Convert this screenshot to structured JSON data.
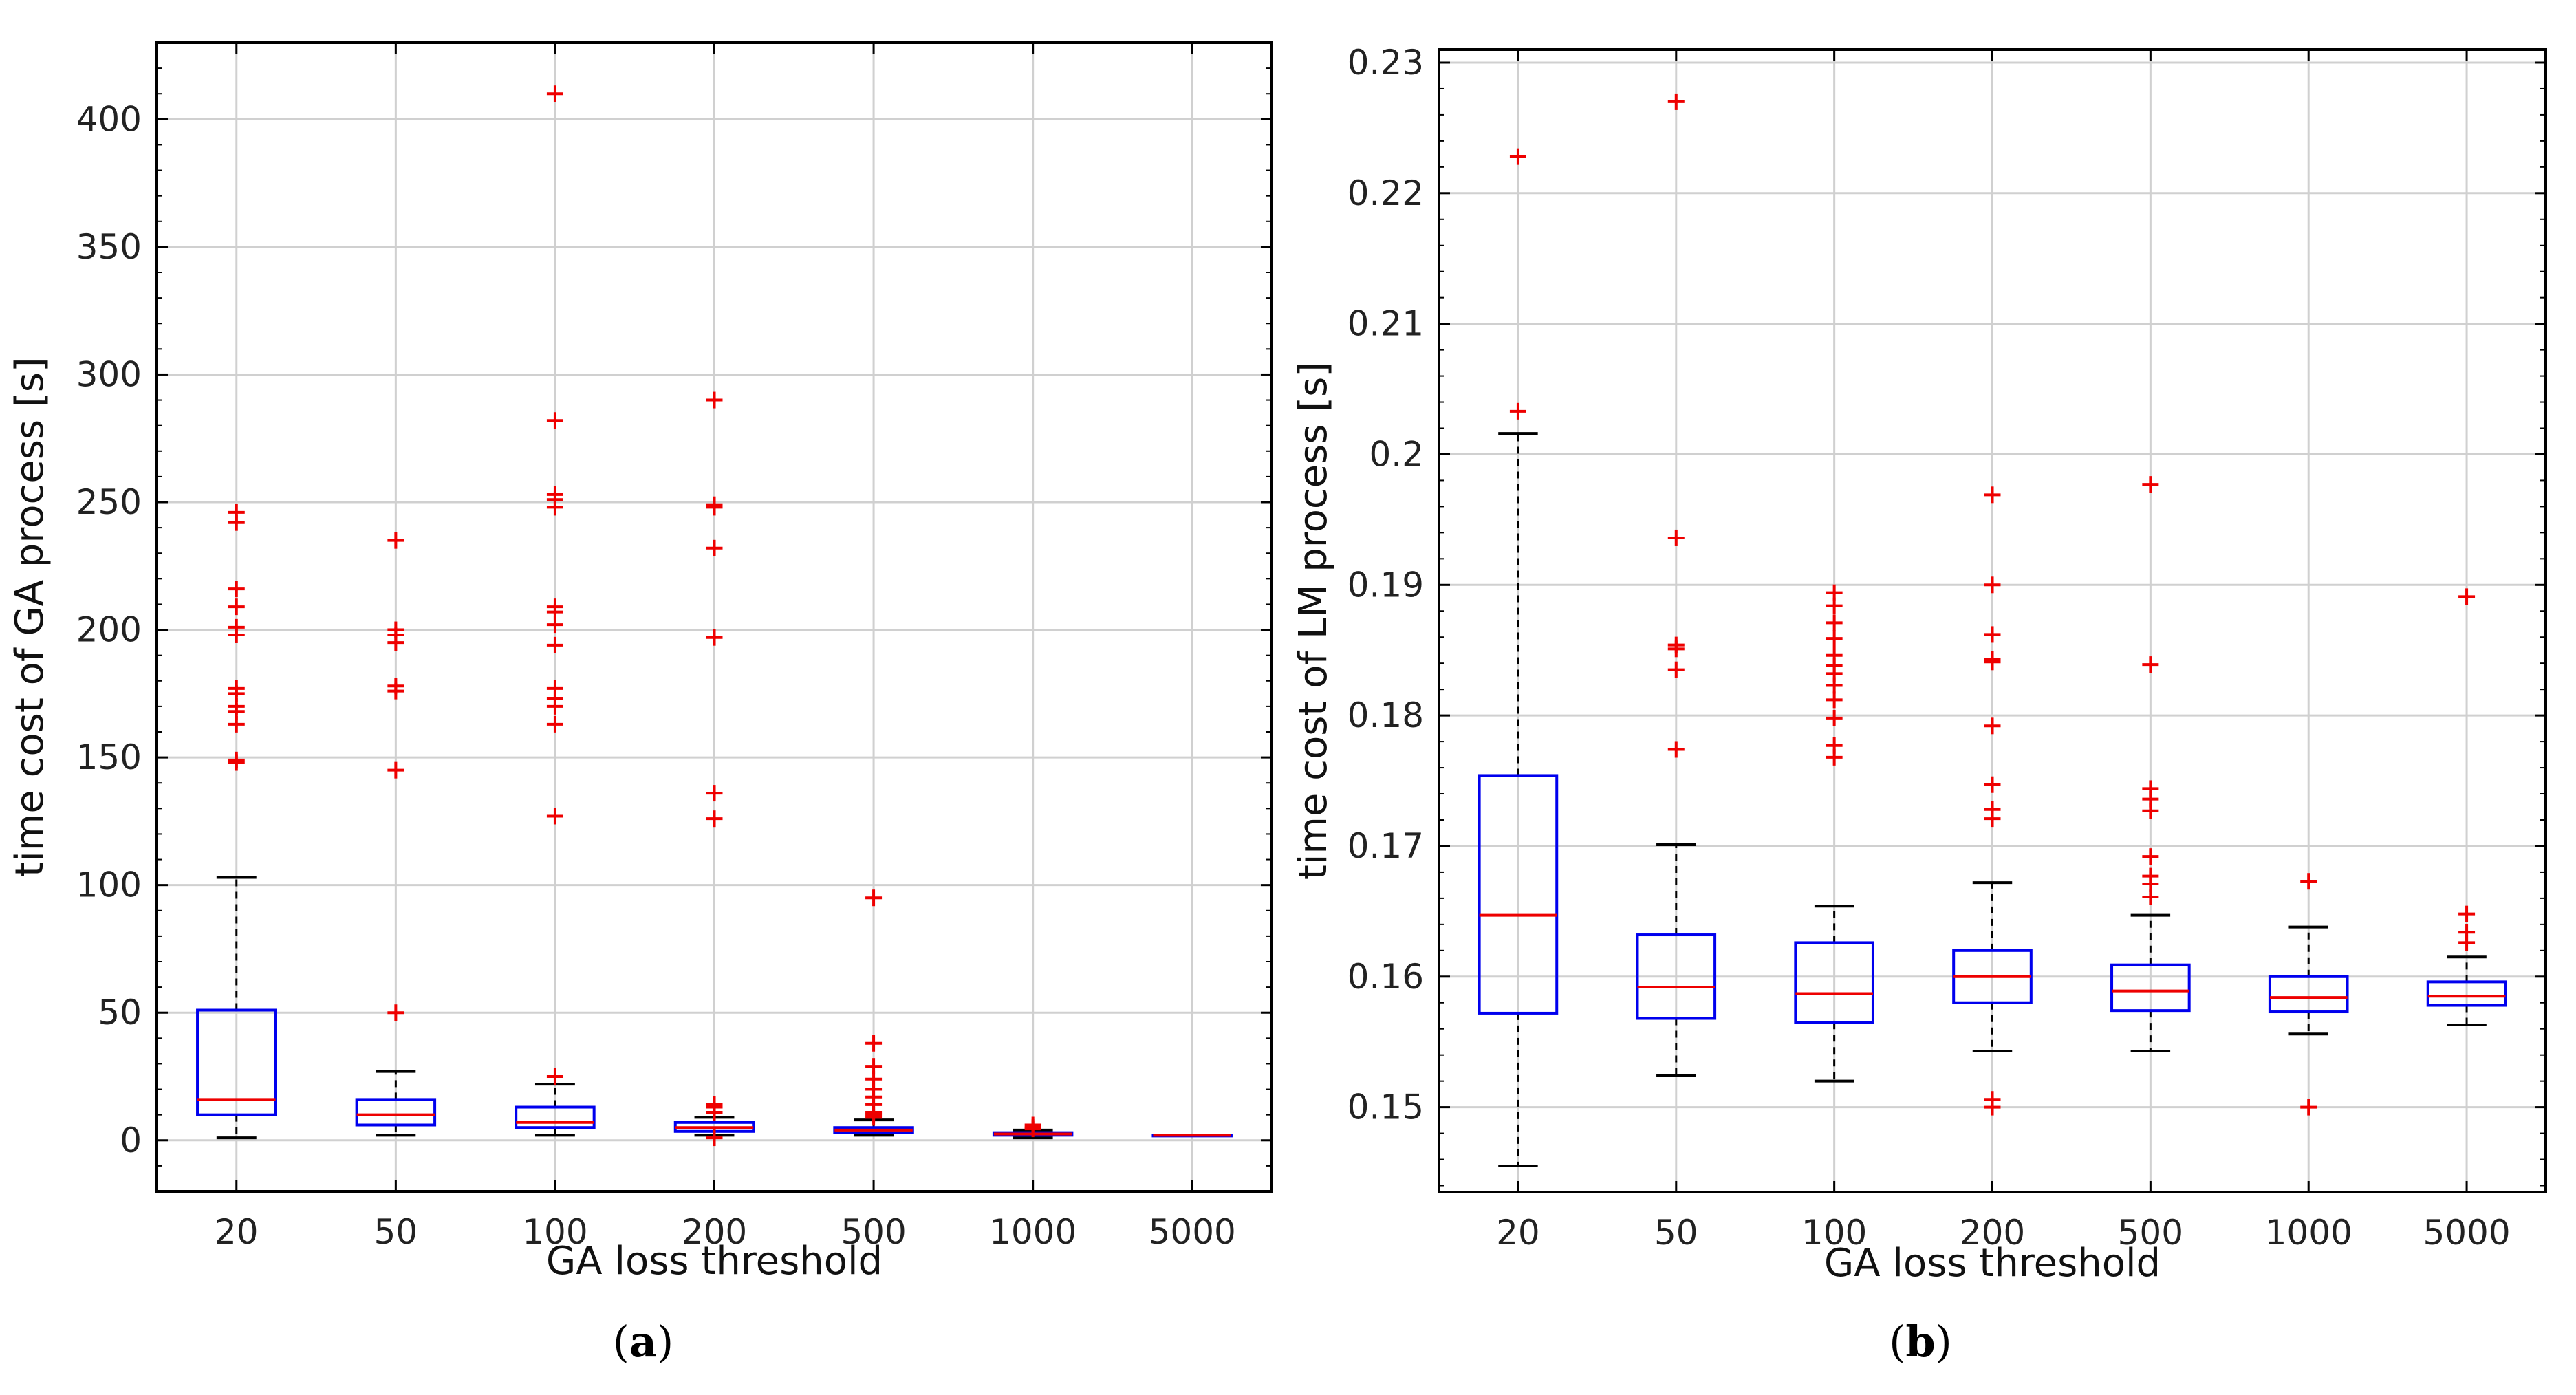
{
  "chart_data": [
    {
      "type": "box",
      "panel_label": "a",
      "xlabel": "GA loss threshold",
      "ylabel": "time cost of GA process [s]",
      "categories": [
        "20",
        "50",
        "100",
        "200",
        "500",
        "1000",
        "5000"
      ],
      "ylim": [
        -20,
        430
      ],
      "yticks": [
        0,
        50,
        100,
        150,
        200,
        250,
        300,
        350,
        400
      ],
      "ytick_labels": [
        "0",
        "50",
        "100",
        "150",
        "200",
        "250",
        "300",
        "350",
        "400"
      ],
      "grid": true,
      "box_color": "#0000ee",
      "median_color": "#ee0000",
      "whisker_color": "#000000",
      "outlier_color": "#ee0000",
      "boxes": [
        {
          "whisker_low": 1,
          "q1": 10,
          "median": 16,
          "q3": 51,
          "whisker_high": 103,
          "outliers": [
            148,
            149,
            163,
            168,
            170,
            175,
            177,
            198,
            201,
            209,
            216,
            242,
            246
          ]
        },
        {
          "whisker_low": 2,
          "q1": 6,
          "median": 10,
          "q3": 16,
          "whisker_high": 27,
          "outliers": [
            50,
            145,
            176,
            178,
            195,
            198,
            200,
            235
          ]
        },
        {
          "whisker_low": 2,
          "q1": 5,
          "median": 7,
          "q3": 13,
          "whisker_high": 22,
          "outliers": [
            25,
            127,
            163,
            170,
            173,
            177,
            194,
            202,
            207,
            209,
            248,
            251,
            253,
            282,
            410
          ]
        },
        {
          "whisker_low": 2,
          "q1": 3.5,
          "median": 5,
          "q3": 7,
          "whisker_high": 9,
          "outliers": [
            1,
            11,
            13,
            14,
            126,
            136,
            197,
            232,
            248,
            249,
            290
          ]
        },
        {
          "whisker_low": 2,
          "q1": 3,
          "median": 4,
          "q3": 5,
          "whisker_high": 8,
          "outliers": [
            9,
            10,
            11,
            14,
            17,
            20,
            24,
            29,
            38,
            95
          ]
        },
        {
          "whisker_low": 1,
          "q1": 2,
          "median": 2.5,
          "q3": 3,
          "whisker_high": 4,
          "outliers": [
            4.5,
            5,
            6
          ]
        },
        {
          "whisker_low": 2,
          "q1": 2,
          "median": 2,
          "q3": 2,
          "whisker_high": 2,
          "outliers": []
        }
      ]
    },
    {
      "type": "box",
      "panel_label": "b",
      "xlabel": "GA loss threshold",
      "ylabel": "time cost of LM process [s]",
      "categories": [
        "20",
        "50",
        "100",
        "200",
        "500",
        "1000",
        "5000"
      ],
      "ylim": [
        0.1435,
        0.231
      ],
      "yticks": [
        0.15,
        0.16,
        0.17,
        0.18,
        0.19,
        0.2,
        0.21,
        0.22,
        0.23
      ],
      "ytick_labels": [
        "0.15",
        "0.16",
        "0.17",
        "0.18",
        "0.19",
        "0.2",
        "0.21",
        "0.22",
        "0.23"
      ],
      "grid": true,
      "box_color": "#0000ee",
      "median_color": "#ee0000",
      "whisker_color": "#000000",
      "outlier_color": "#ee0000",
      "boxes": [
        {
          "whisker_low": 0.1455,
          "q1": 0.1572,
          "median": 0.1647,
          "q3": 0.1754,
          "whisker_high": 0.2016,
          "outliers": [
            0.2033,
            0.2228
          ]
        },
        {
          "whisker_low": 0.1524,
          "q1": 0.1568,
          "median": 0.1592,
          "q3": 0.1632,
          "whisker_high": 0.1701,
          "outliers": [
            0.1774,
            0.1835,
            0.1851,
            0.1854,
            0.1936,
            0.227
          ]
        },
        {
          "whisker_low": 0.152,
          "q1": 0.1565,
          "median": 0.1587,
          "q3": 0.1626,
          "whisker_high": 0.1654,
          "outliers": [
            0.1768,
            0.1777,
            0.1798,
            0.1812,
            0.1823,
            0.1832,
            0.1838,
            0.1846,
            0.1859,
            0.1871,
            0.1884,
            0.1894
          ]
        },
        {
          "whisker_low": 0.1543,
          "q1": 0.158,
          "median": 0.16,
          "q3": 0.162,
          "whisker_high": 0.1672,
          "outliers": [
            0.15,
            0.1506,
            0.1721,
            0.1728,
            0.1747,
            0.1792,
            0.1841,
            0.1843,
            0.1862,
            0.19,
            0.1969
          ]
        },
        {
          "whisker_low": 0.1543,
          "q1": 0.1574,
          "median": 0.1589,
          "q3": 0.1609,
          "whisker_high": 0.1647,
          "outliers": [
            0.1661,
            0.1671,
            0.1677,
            0.1692,
            0.1727,
            0.1736,
            0.1744,
            0.1839,
            0.1977
          ]
        },
        {
          "whisker_low": 0.1556,
          "q1": 0.1573,
          "median": 0.1584,
          "q3": 0.16,
          "whisker_high": 0.1638,
          "outliers": [
            0.15,
            0.1673
          ]
        },
        {
          "whisker_low": 0.1563,
          "q1": 0.1578,
          "median": 0.1585,
          "q3": 0.1596,
          "whisker_high": 0.1615,
          "outliers": [
            0.1626,
            0.1634,
            0.1648,
            0.1891
          ]
        }
      ]
    }
  ]
}
